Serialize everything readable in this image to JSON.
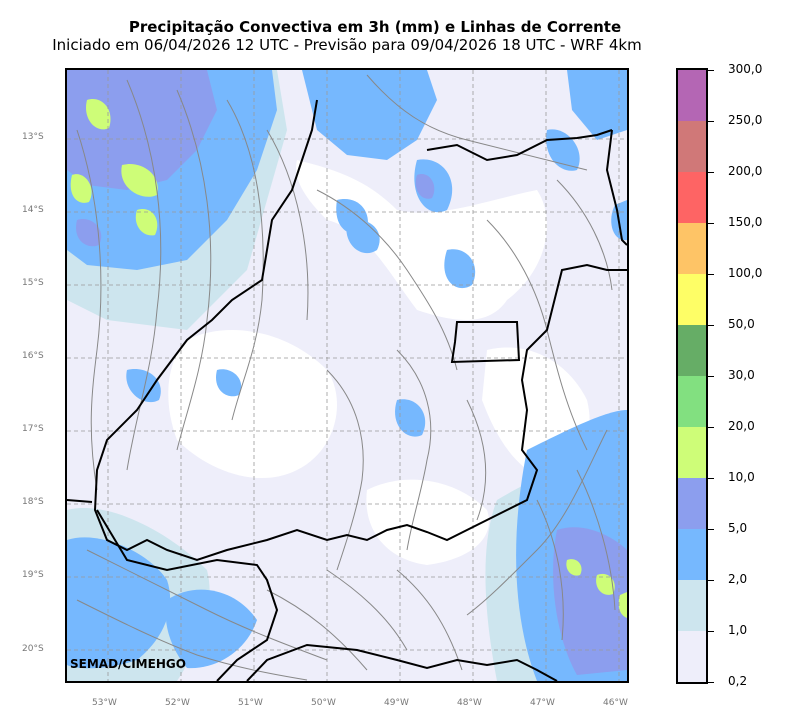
{
  "title": "Precipitação Convectiva em 3h (mm) e Linhas de Corrente",
  "subtitle": "Iniciado em 06/04/2026 12 UTC - Previsão para 09/04/2026 18 UTC - WRF 4km",
  "credit": "SEMAD/CIMEHGO",
  "lat_labels": [
    "13°S",
    "14°S",
    "15°S",
    "16°S",
    "17°S",
    "18°S",
    "19°S",
    "20°S"
  ],
  "lon_labels": [
    "53°W",
    "52°W",
    "51°W",
    "50°W",
    "49°W",
    "48°W",
    "47°W",
    "46°W"
  ],
  "colorbar": {
    "levels": [
      "0,2",
      "1,0",
      "2,0",
      "5,0",
      "10,0",
      "20,0",
      "30,0",
      "50,0",
      "100,0",
      "150,0",
      "200,0",
      "250,0",
      "300,0"
    ],
    "colors": [
      "#eeeefa",
      "#cde5ee",
      "#76b8fe",
      "#8c9eee",
      "#cefd78",
      "#82e080",
      "#66ad66",
      "#fefe66",
      "#fec466",
      "#fe6464",
      "#d07878",
      "#b466b4"
    ]
  },
  "map_colors": {
    "light": "#eeeefa",
    "pale_blue": "#cde5ee",
    "blue": "#76b8fe",
    "violet": "#8c9eee",
    "green": "#cefd78",
    "streamline": "#888888",
    "border": "#000000"
  }
}
